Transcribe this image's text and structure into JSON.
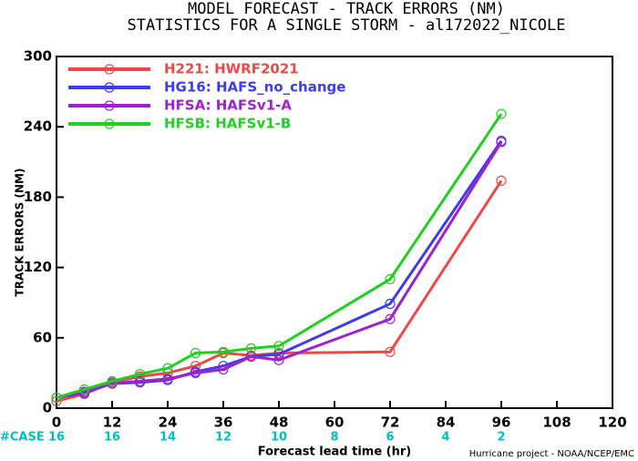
{
  "chart_data": {
    "type": "line",
    "title": "MODEL FORECAST - TRACK ERRORS (NM)",
    "subtitle": "STATISTICS FOR A SINGLE STORM - al172022_NICOLE",
    "x_label": "Forecast lead time (hr)",
    "y_label": "TRACK ERRORS (NM)",
    "footer": "Hurricane project - NOAA/NCEP/EMC",
    "case_label": "#CASE",
    "case_x": [
      0,
      12,
      24,
      36,
      48,
      60,
      72,
      84,
      96
    ],
    "cases": [
      "16",
      "16",
      "14",
      "12",
      "10",
      "8",
      "6",
      "4",
      "2"
    ],
    "case_color": "#00c0c0",
    "x": [
      0,
      6,
      12,
      18,
      24,
      30,
      36,
      42,
      48,
      72,
      96
    ],
    "series": [
      {
        "name": "H221: HWRF2021",
        "color": "#f04848",
        "values": [
          6,
          12,
          22,
          27,
          30,
          36,
          47,
          45,
          47,
          48,
          194
        ]
      },
      {
        "name": "HG16: HAFS_no_change",
        "color": "#3c3cf0",
        "values": [
          9,
          13,
          21,
          22,
          24,
          31,
          36,
          44,
          46,
          89,
          228
        ]
      },
      {
        "name": "HFSA: HAFSv1-A",
        "color": "#a020d0",
        "values": [
          9,
          14,
          21,
          23,
          25,
          30,
          33,
          44,
          41,
          76,
          227
        ]
      },
      {
        "name": "HFSB: HAFSv1-B",
        "color": "#20d020",
        "values": [
          9,
          16,
          23,
          29,
          34,
          47,
          48,
          51,
          53,
          110,
          251
        ]
      }
    ],
    "xlim": [
      0,
      120
    ],
    "xticks": [
      0,
      12,
      24,
      36,
      48,
      60,
      72,
      84,
      96,
      108,
      120
    ],
    "ylim": [
      0,
      300
    ],
    "yticks": [
      0,
      60,
      120,
      180,
      240,
      300
    ]
  }
}
